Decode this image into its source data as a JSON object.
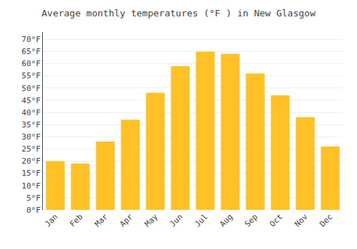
{
  "chart_data": {
    "type": "bar",
    "title": "Average monthly temperatures (°F ) in New Glasgow",
    "categories": [
      "Jan",
      "Feb",
      "Mar",
      "Apr",
      "May",
      "Jun",
      "Jul",
      "Aug",
      "Sep",
      "Oct",
      "Nov",
      "Dec"
    ],
    "values": [
      20,
      19,
      28,
      37,
      48,
      59,
      65,
      64,
      56,
      47,
      38,
      26
    ],
    "color": "#FFC125",
    "ylim": [
      0,
      73
    ],
    "yticks": [
      {
        "value": 0,
        "label": "0°F"
      },
      {
        "value": 5,
        "label": "5°F"
      },
      {
        "value": 10,
        "label": "10°F"
      },
      {
        "value": 15,
        "label": "15°F"
      },
      {
        "value": 20,
        "label": "20°F"
      },
      {
        "value": 25,
        "label": "25°F"
      },
      {
        "value": 30,
        "label": "30°F"
      },
      {
        "value": 35,
        "label": "35°F"
      },
      {
        "value": 40,
        "label": "40°F"
      },
      {
        "value": 45,
        "label": "45°F"
      },
      {
        "value": 50,
        "label": "50°F"
      },
      {
        "value": 55,
        "label": "55°F"
      },
      {
        "value": 60,
        "label": "60°F"
      },
      {
        "value": 65,
        "label": "65°F"
      },
      {
        "value": 70,
        "label": "70°F"
      }
    ],
    "grid": true
  }
}
